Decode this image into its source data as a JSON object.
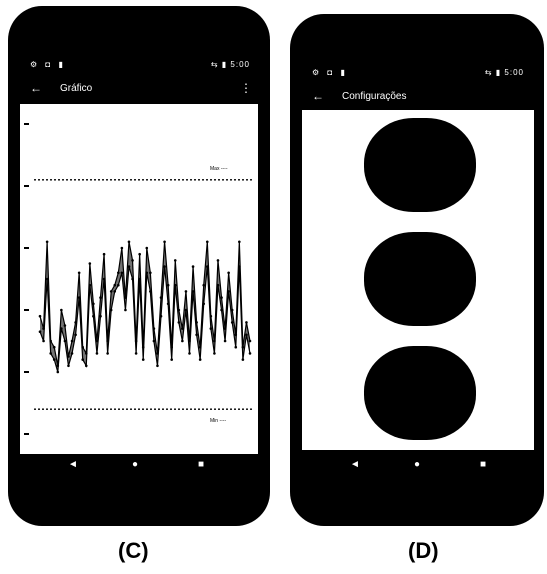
{
  "panels": [
    {
      "caption": "(C)",
      "status": {
        "left_icons": "⚙ ◘ ▮",
        "right_text": "⇆ ▮ 5:00"
      },
      "appbar": {
        "back_icon": "arrow-left-icon",
        "title": "Gráfico",
        "menu_icon": "more-vertical-icon"
      },
      "chart": {
        "upper_label": "Max ----",
        "lower_label": "Min ----"
      },
      "nav": {
        "back": "◄",
        "home": "●",
        "recent": "■"
      }
    },
    {
      "caption": "(D)",
      "status": {
        "left_icons": "⚙ ◘ ▮",
        "right_text": "⇆ ▮ 5:00"
      },
      "appbar": {
        "back_icon": "arrow-left-icon",
        "title": "Configurações"
      },
      "toggles": [
        {
          "name": "setting-toggle-1",
          "on": true
        },
        {
          "name": "setting-toggle-2",
          "on": true
        },
        {
          "name": "setting-toggle-3",
          "on": true
        }
      ],
      "nav": {
        "back": "◄",
        "home": "●",
        "recent": "■"
      }
    }
  ],
  "chart_data": {
    "type": "line",
    "title": "",
    "xlabel": "",
    "ylabel": "",
    "thresholds": [
      {
        "name": "upper",
        "y": 0.82
      },
      {
        "name": "lower",
        "y": 0.08
      }
    ],
    "x": [
      0,
      1,
      2,
      3,
      4,
      5,
      6,
      7,
      8,
      9,
      10,
      11,
      12,
      13,
      14,
      15,
      16,
      17,
      18,
      19,
      20,
      21,
      22,
      23,
      24,
      25,
      26,
      27,
      28,
      29,
      30,
      31,
      32,
      33,
      34,
      35,
      36,
      37,
      38,
      39,
      40,
      41,
      42,
      43,
      44,
      45,
      46,
      47,
      48,
      49,
      50,
      51,
      52,
      53,
      54,
      55,
      56,
      57,
      58,
      59
    ],
    "series": [
      {
        "values": [
          0.38,
          0.34,
          0.62,
          0.3,
          0.28,
          0.22,
          0.4,
          0.35,
          0.25,
          0.3,
          0.36,
          0.52,
          0.28,
          0.26,
          0.55,
          0.42,
          0.3,
          0.44,
          0.58,
          0.3,
          0.46,
          0.48,
          0.52,
          0.6,
          0.44,
          0.62,
          0.56,
          0.3,
          0.58,
          0.28,
          0.6,
          0.52,
          0.34,
          0.26,
          0.44,
          0.62,
          0.48,
          0.28,
          0.56,
          0.4,
          0.34,
          0.46,
          0.3,
          0.54,
          0.36,
          0.28,
          0.48,
          0.62,
          0.38,
          0.3,
          0.56,
          0.44,
          0.34,
          0.52,
          0.4,
          0.32,
          0.62,
          0.28,
          0.36,
          0.3
        ]
      },
      {
        "values": [
          0.33,
          0.3,
          0.5,
          0.26,
          0.24,
          0.2,
          0.34,
          0.3,
          0.22,
          0.26,
          0.32,
          0.44,
          0.24,
          0.22,
          0.48,
          0.38,
          0.26,
          0.38,
          0.5,
          0.26,
          0.4,
          0.46,
          0.48,
          0.52,
          0.4,
          0.54,
          0.5,
          0.26,
          0.5,
          0.24,
          0.52,
          0.46,
          0.3,
          0.22,
          0.38,
          0.54,
          0.42,
          0.24,
          0.48,
          0.36,
          0.3,
          0.4,
          0.26,
          0.46,
          0.32,
          0.24,
          0.42,
          0.54,
          0.34,
          0.26,
          0.48,
          0.4,
          0.3,
          0.46,
          0.36,
          0.28,
          0.54,
          0.24,
          0.32,
          0.26
        ]
      }
    ]
  }
}
